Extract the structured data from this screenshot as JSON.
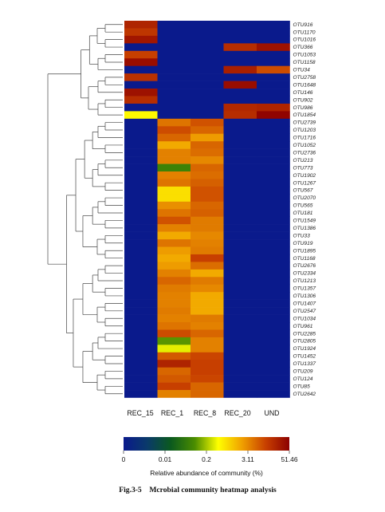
{
  "chart_data": {
    "type": "heatmap",
    "title": "",
    "columns": [
      "REC_15",
      "REC_1",
      "REC_8",
      "REC_20",
      "UND"
    ],
    "rows": [
      "OTU916",
      "OTU1170",
      "OTU1016",
      "OTU366",
      "OTU1053",
      "OTU1158",
      "OTU34",
      "OTU2758",
      "OTU1648",
      "OTU146",
      "OTU902",
      "OTU986",
      "OTU1854",
      "OTU2739",
      "OTU1203",
      "OTU1716",
      "OTU1052",
      "OTU2736",
      "OTU213",
      "OTU773",
      "OTU1902",
      "OTU1267",
      "OTU567",
      "OTU2070",
      "OTU565",
      "OTU181",
      "OTU1549",
      "OTU1386",
      "OTU33",
      "OTU919",
      "OTU1895",
      "OTU1168",
      "OTU2676",
      "OTU2334",
      "OTU1213",
      "OTU1357",
      "OTU1306",
      "OTU1407",
      "OTU2547",
      "OTU1034",
      "OTU961",
      "OTU2285",
      "OTU2805",
      "OTU1924",
      "OTU1452",
      "OTU1337",
      "OTU209",
      "OTU124",
      "OTU85",
      "OTU2642"
    ],
    "values": [
      [
        0.92,
        0,
        0,
        0,
        0
      ],
      [
        0.88,
        0,
        0,
        0,
        0
      ],
      [
        0.95,
        0,
        0,
        0,
        0
      ],
      [
        0,
        0,
        0,
        0.9,
        0.96
      ],
      [
        0.86,
        0,
        0,
        0,
        0
      ],
      [
        0.97,
        0,
        0,
        0,
        0
      ],
      [
        0,
        0,
        0,
        0.93,
        0.84
      ],
      [
        0.89,
        0,
        0,
        0,
        0
      ],
      [
        0,
        0,
        0,
        0.97,
        0
      ],
      [
        0.96,
        0,
        0,
        0,
        0
      ],
      [
        0.9,
        0,
        0,
        0,
        0
      ],
      [
        0,
        0,
        0,
        0.91,
        0.92
      ],
      [
        0.58,
        0,
        0,
        0.9,
        0.99
      ],
      [
        0,
        0.78,
        0.83,
        0,
        0
      ],
      [
        0,
        0.84,
        0.8,
        0,
        0
      ],
      [
        0,
        0.8,
        0.72,
        0,
        0
      ],
      [
        0,
        0.7,
        0.8,
        0,
        0
      ],
      [
        0,
        0.76,
        0.79,
        0,
        0
      ],
      [
        0,
        0.76,
        0.75,
        0,
        0
      ],
      [
        0,
        0.4,
        0.8,
        0,
        0
      ],
      [
        0,
        0.76,
        0.79,
        0,
        0
      ],
      [
        0,
        0.78,
        0.81,
        0,
        0
      ],
      [
        0,
        0.62,
        0.83,
        0,
        0
      ],
      [
        0,
        0.62,
        0.83,
        0,
        0
      ],
      [
        0,
        0.74,
        0.8,
        0,
        0
      ],
      [
        0,
        0.78,
        0.81,
        0,
        0
      ],
      [
        0,
        0.83,
        0.77,
        0,
        0
      ],
      [
        0,
        0.76,
        0.77,
        0,
        0
      ],
      [
        0,
        0.7,
        0.75,
        0,
        0
      ],
      [
        0,
        0.78,
        0.76,
        0,
        0
      ],
      [
        0,
        0.72,
        0.77,
        0,
        0
      ],
      [
        0,
        0.7,
        0.86,
        0,
        0
      ],
      [
        0,
        0.72,
        0.79,
        0,
        0
      ],
      [
        0,
        0.76,
        0.7,
        0,
        0
      ],
      [
        0,
        0.8,
        0.77,
        0,
        0
      ],
      [
        0,
        0.77,
        0.75,
        0,
        0
      ],
      [
        0,
        0.76,
        0.7,
        0,
        0
      ],
      [
        0,
        0.76,
        0.7,
        0,
        0
      ],
      [
        0,
        0.77,
        0.7,
        0,
        0
      ],
      [
        0,
        0.76,
        0.77,
        0,
        0
      ],
      [
        0,
        0.78,
        0.76,
        0,
        0
      ],
      [
        0,
        0.84,
        0.8,
        0,
        0
      ],
      [
        0,
        0.44,
        0.76,
        0,
        0
      ],
      [
        0,
        0.55,
        0.76,
        0,
        0
      ],
      [
        0,
        0.82,
        0.85,
        0,
        0
      ],
      [
        0,
        0.92,
        0.86,
        0,
        0
      ],
      [
        0,
        0.8,
        0.86,
        0,
        0
      ],
      [
        0,
        0.82,
        0.85,
        0,
        0
      ],
      [
        0,
        0.86,
        0.8,
        0,
        0
      ],
      [
        0,
        0.76,
        0.8,
        0,
        0
      ]
    ],
    "value_scale": "relative position on colour scale (0 = 0%, 1 = 51.46%)",
    "colorbar": {
      "ticks": [
        "0",
        "0.01",
        "0.2",
        "3.11",
        "51.46"
      ],
      "label": "Relative abundance of community (%)",
      "colors": [
        "#0a1a8c",
        "#0a3a6a",
        "#0b5a1e",
        "#4a8c00",
        "#ffff00",
        "#f0a000",
        "#c84000",
        "#8c0000"
      ]
    },
    "dendrogram": "left-side hierarchical clustering tree of OTUs"
  },
  "caption": "Fig.3-5    Mcrobial community heatmap analysis"
}
